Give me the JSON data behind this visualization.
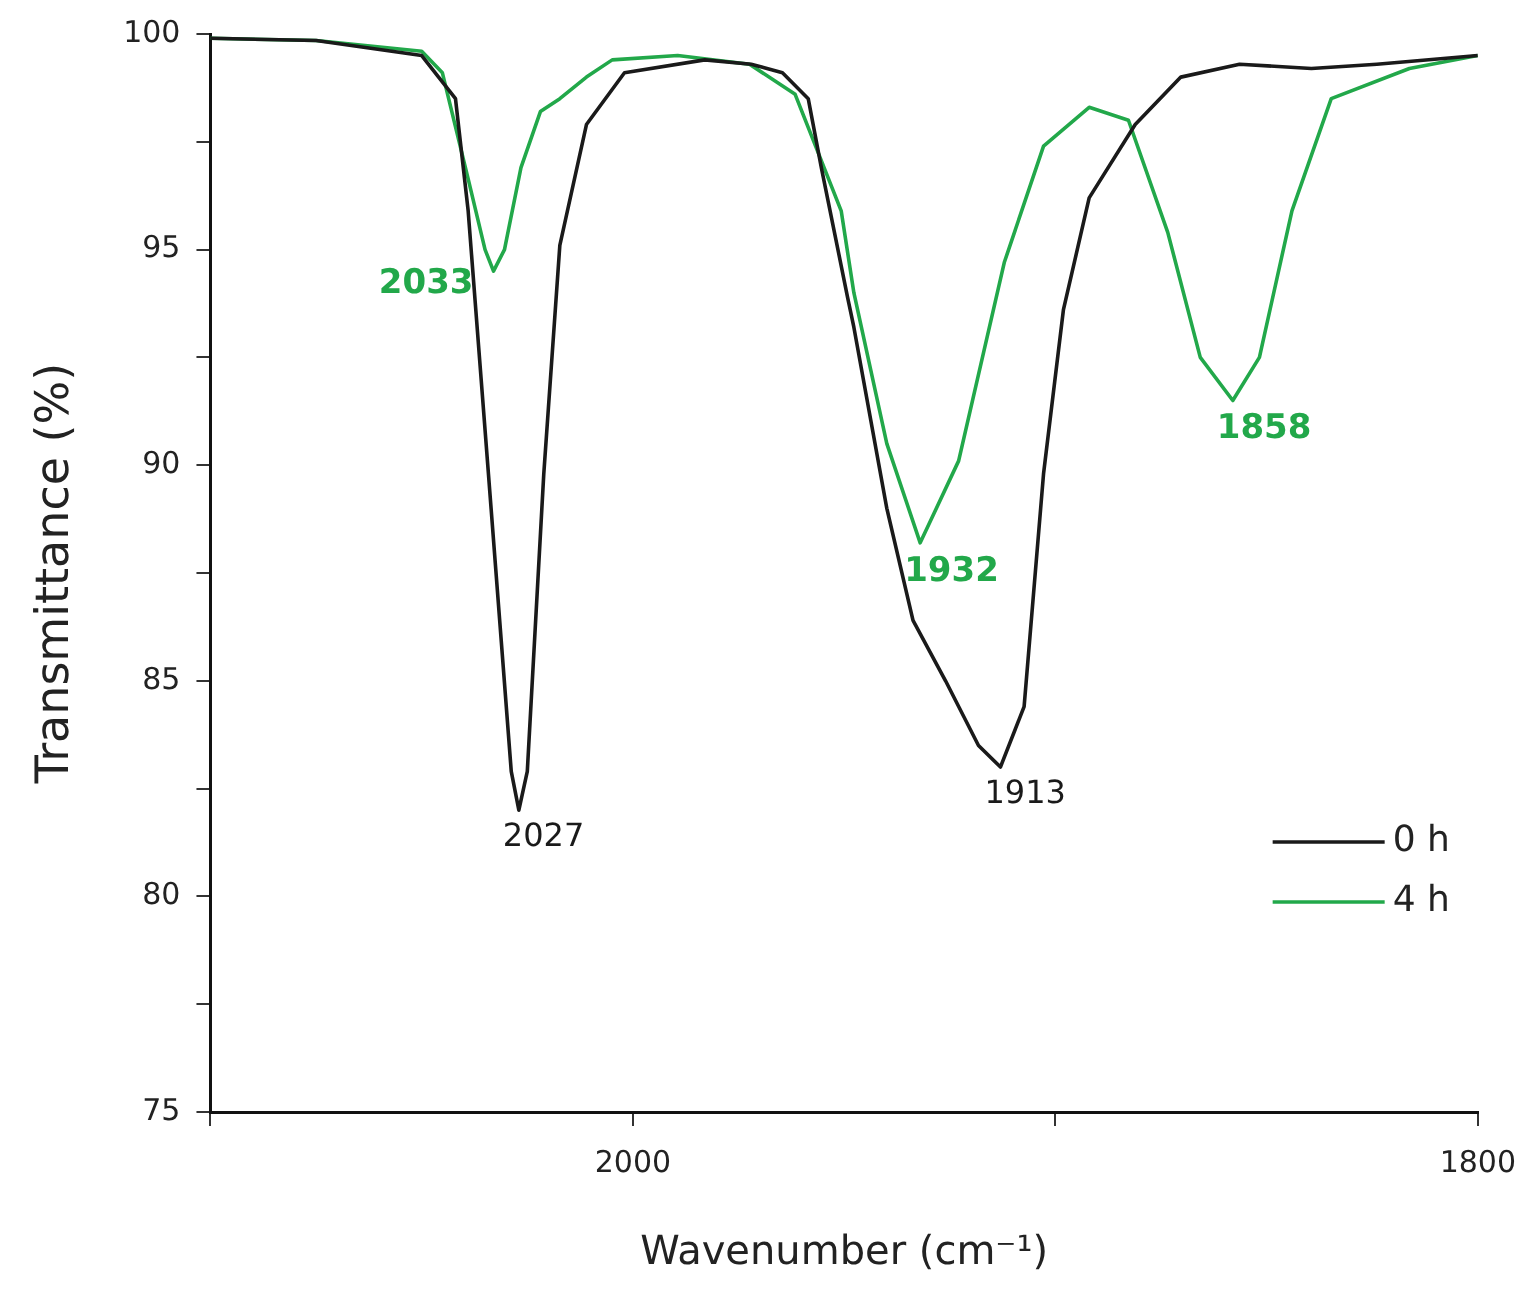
{
  "chart_data": {
    "type": "line",
    "xlabel": "Wavenumber (cm⁻¹)",
    "ylabel": "Transmittance (%)",
    "xlim": [
      2100,
      1800
    ],
    "xticks": [
      {
        "value": 2100,
        "label": null
      },
      2000,
      {
        "value": 1900,
        "label": null
      },
      1800
    ],
    "ylim": [
      75,
      100
    ],
    "yticks": [
      75,
      {
        "value": 77.5,
        "label": null
      },
      80,
      {
        "value": 82.5,
        "label": null
      },
      85,
      {
        "value": 87.5,
        "label": null
      },
      90,
      {
        "value": 92.5,
        "label": null
      },
      95,
      {
        "value": 97.5,
        "label": null
      },
      100
    ],
    "grid": false,
    "legend": "bottom right",
    "marker": "none",
    "line_style": "solid",
    "series": [
      {
        "name": "0 h",
        "color": "#1a1a1a",
        "x": [
          2100,
          2075,
          2050,
          2042,
          2039,
          2034.2,
          2028.8,
          2027,
          2025,
          2021.1,
          2017.3,
          2011,
          2002,
          1983,
          1972,
          1964.6,
          1958.5,
          1955.4,
          1949.2,
          1947.7,
          1939.9,
          1933.7,
          1926,
          1918.2,
          1913,
          1907.4,
          1902.8,
          1898.1,
          1892,
          1881.1,
          1870.3,
          1856.4,
          1839.4,
          1823.9,
          1800
        ],
        "values": [
          99.9,
          99.85,
          99.5,
          98.5,
          95.9,
          89.8,
          82.9,
          82.0,
          82.9,
          89.8,
          95.1,
          97.9,
          99.1,
          99.4,
          99.3,
          99.1,
          98.5,
          96.9,
          93.9,
          93.2,
          89.0,
          86.4,
          85.0,
          83.5,
          83.0,
          84.4,
          89.8,
          93.6,
          96.2,
          97.9,
          99.0,
          99.3,
          99.2,
          99.3,
          99.5
        ]
      },
      {
        "name": "4 h",
        "color": "#22a84a",
        "x": [
          2100,
          2075,
          2050,
          2045.1,
          2038.9,
          2035,
          2033,
          2030.4,
          2026.5,
          2021.9,
          2017.3,
          2011,
          2004.9,
          1989.4,
          1972.4,
          1961.6,
          1950.7,
          1947.7,
          1939.9,
          1932,
          1922.9,
          1912.1,
          1902.8,
          1892,
          1882.7,
          1873.4,
          1865.7,
          1858,
          1851.7,
          1844,
          1834.7,
          1816.2,
          1800
        ],
        "values": [
          99.9,
          99.85,
          99.6,
          99.1,
          96.6,
          95.0,
          94.5,
          95.0,
          96.9,
          98.2,
          98.5,
          99.0,
          99.4,
          99.5,
          99.3,
          98.6,
          95.9,
          94.0,
          90.5,
          88.2,
          90.1,
          94.7,
          97.4,
          98.3,
          98.0,
          95.4,
          92.5,
          91.5,
          92.5,
          95.9,
          98.5,
          99.2,
          99.5
        ]
      }
    ],
    "annotations": [
      {
        "text": "2033",
        "x": 2033,
        "y": 94.5
      },
      {
        "text": "2027",
        "x": 2027,
        "y": 82.0
      },
      {
        "text": "1932",
        "x": 1932,
        "y": 88.2
      },
      {
        "text": "1913",
        "x": 1913,
        "y": 83.0
      },
      {
        "text": "1858",
        "x": 1858,
        "y": 91.5
      }
    ]
  }
}
